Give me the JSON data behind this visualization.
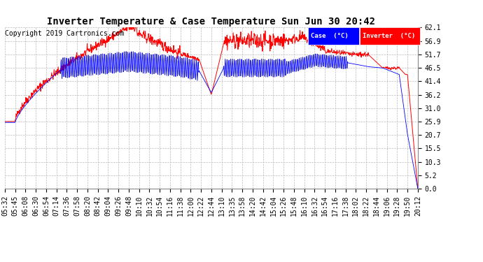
{
  "title": "Inverter Temperature & Case Temperature Sun Jun 30 20:42",
  "copyright": "Copyright 2019 Cartronics.com",
  "yticks": [
    0.0,
    5.2,
    10.3,
    15.5,
    20.7,
    25.9,
    31.0,
    36.2,
    41.4,
    46.5,
    51.7,
    56.9,
    62.1
  ],
  "xtick_labels": [
    "05:32",
    "05:45",
    "06:08",
    "06:30",
    "06:54",
    "07:14",
    "07:36",
    "07:58",
    "08:20",
    "08:42",
    "09:04",
    "09:26",
    "09:48",
    "10:10",
    "10:32",
    "10:54",
    "11:16",
    "11:38",
    "12:00",
    "12:22",
    "12:44",
    "13:10",
    "13:35",
    "13:58",
    "14:20",
    "14:42",
    "15:04",
    "15:26",
    "15:48",
    "16:10",
    "16:32",
    "16:54",
    "17:16",
    "17:38",
    "18:02",
    "18:22",
    "18:44",
    "19:06",
    "19:28",
    "19:50",
    "20:12"
  ],
  "plot_bg": "#ffffff",
  "grid_color": "#bbbbbb",
  "case_color": "#0000ff",
  "inverter_color": "#ff0000",
  "ylim": [
    0.0,
    62.1
  ],
  "title_fontsize": 10,
  "copyright_fontsize": 7,
  "tick_fontsize": 7
}
